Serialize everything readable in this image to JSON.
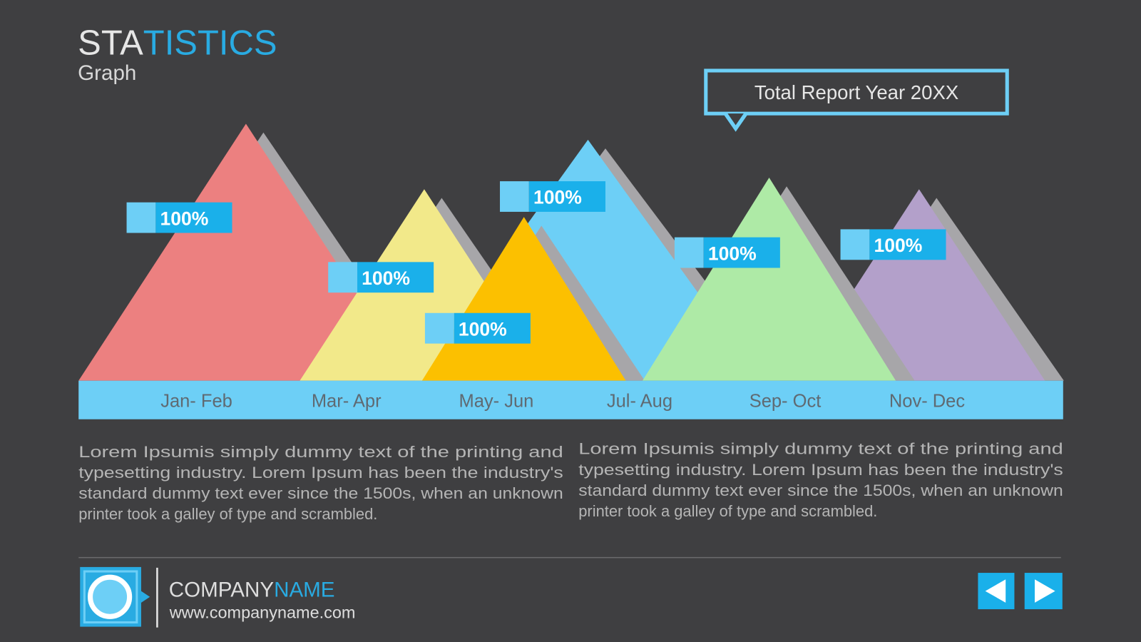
{
  "header": {
    "title_part1": "STA",
    "title_part2": "TISTICS",
    "subtitle": "Graph"
  },
  "callout": "Total Report Year 20XX",
  "peaks": [
    {
      "label": "Jan- Feb",
      "percent": "100%"
    },
    {
      "label": "Mar- Apr",
      "percent": "100%"
    },
    {
      "label": "May- Jun",
      "percent": "100%"
    },
    {
      "label": "Jul- Aug",
      "percent": "100%"
    },
    {
      "label": "Sep- Oct",
      "percent": "100%"
    },
    {
      "label": "Nov- Dec",
      "percent": "100%"
    }
  ],
  "paragraphs": [
    [
      "Lorem Ipsumis simply dummy text of the printing and",
      "typesetting industry. Lorem Ipsum has been the industry's",
      "standard dummy text ever since the 1500s, when an unknown",
      "printer took a galley of type and scrambled."
    ],
    [
      "Lorem Ipsumis simply dummy text of the printing and",
      "typesetting industry. Lorem Ipsum has been the industry's",
      "standard dummy text ever since the 1500s, when an unknown",
      "printer took a galley of type and scrambled."
    ]
  ],
  "footer": {
    "company_part1": "COMPANY",
    "company_part2": "NAME",
    "url": "www.companyname.com"
  }
}
